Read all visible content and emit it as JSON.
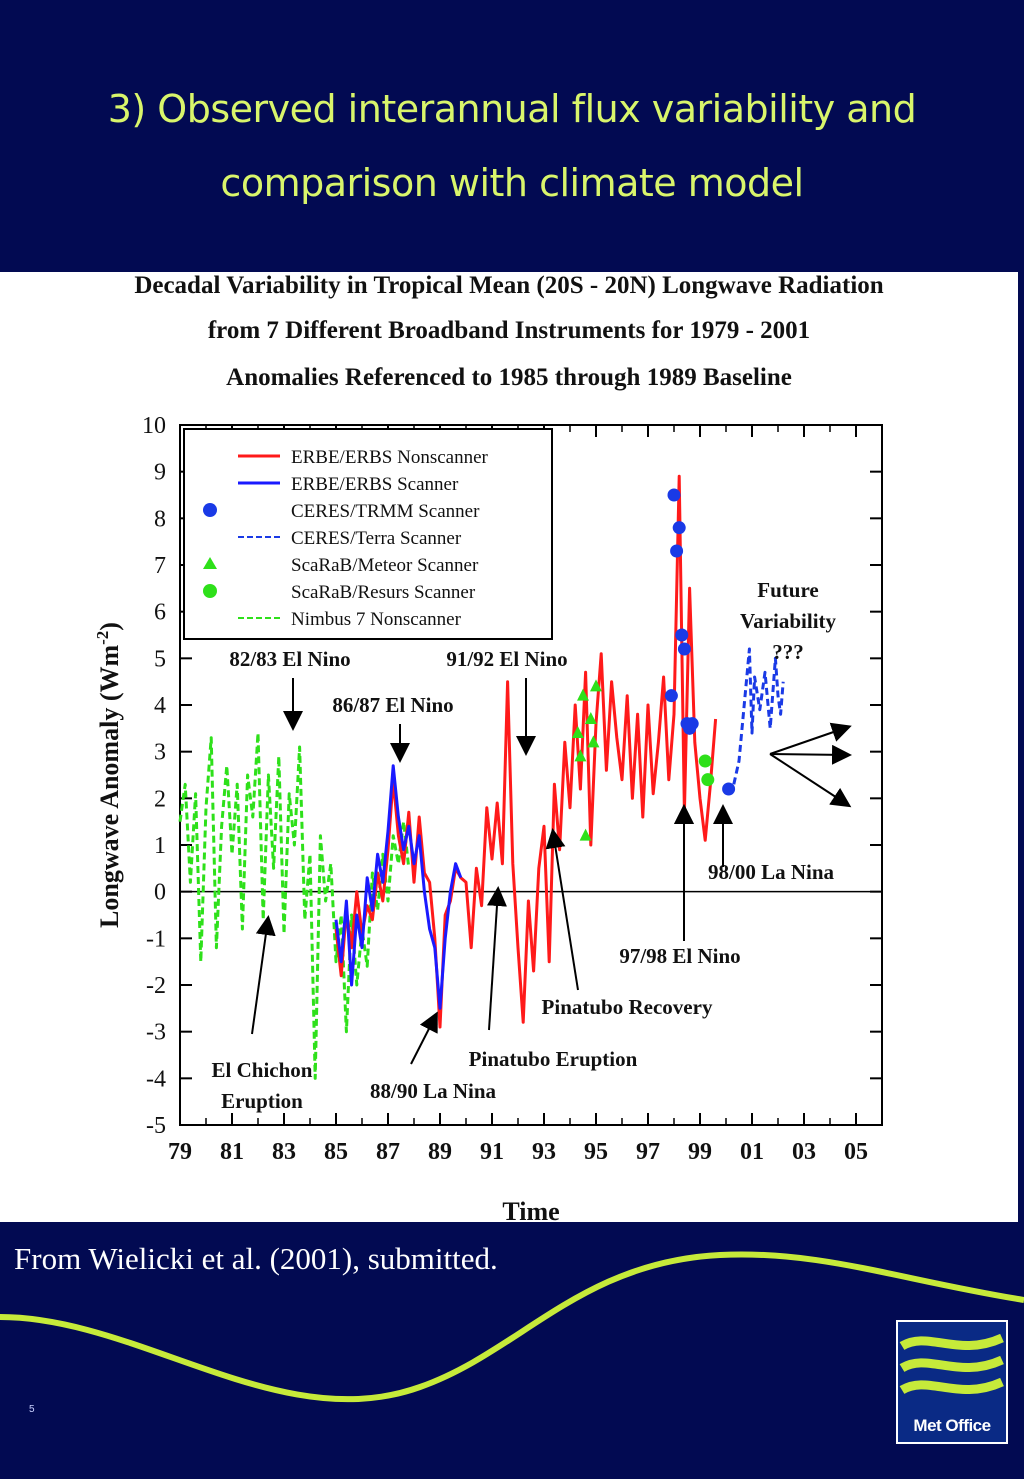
{
  "slide": {
    "title_line1": "3) Observed interannual flux variability and",
    "title_line2": "comparison with climate model",
    "caption": "From Wielicki et al. (2001), submitted.",
    "slide_number": "5",
    "logo_text": "Met Office",
    "colors": {
      "background": "#020a52",
      "title": "#d9f56b",
      "wave": "#c6ea3a"
    }
  },
  "chart_data": {
    "type": "line",
    "title_lines": [
      "Decadal Variability in Tropical Mean (20S - 20N) Longwave Radiation",
      "from 7 Different Broadband Instruments for 1979 - 2001",
      "Anomalies Referenced to 1985 through 1989 Baseline"
    ],
    "xlabel": "Time",
    "ylabel": "Longwave Anomaly (Wm",
    "ylabel_sup": "-2",
    "ylabel_end": ")",
    "xlim": [
      1979,
      2006
    ],
    "ylim": [
      -5,
      10
    ],
    "x_ticks": [
      {
        "value": 1979,
        "label": "79"
      },
      {
        "value": 1981,
        "label": "81"
      },
      {
        "value": 1983,
        "label": "83"
      },
      {
        "value": 1985,
        "label": "85"
      },
      {
        "value": 1987,
        "label": "87"
      },
      {
        "value": 1989,
        "label": "89"
      },
      {
        "value": 1991,
        "label": "91"
      },
      {
        "value": 1993,
        "label": "93"
      },
      {
        "value": 1995,
        "label": "95"
      },
      {
        "value": 1997,
        "label": "97"
      },
      {
        "value": 1999,
        "label": "99"
      },
      {
        "value": 2001,
        "label": "01"
      },
      {
        "value": 2003,
        "label": "03"
      },
      {
        "value": 2005,
        "label": "05"
      }
    ],
    "y_ticks": [
      -5,
      -4,
      -3,
      -2,
      -1,
      0,
      1,
      2,
      3,
      4,
      5,
      6,
      7,
      8,
      9,
      10
    ],
    "zero_line": true,
    "legend_position": "top-left",
    "legend": [
      {
        "label": "ERBE/ERBS Nonscanner",
        "color": "#ff1a1a",
        "style": "solid"
      },
      {
        "label": "ERBE/ERBS Scanner",
        "color": "#1a1aff",
        "style": "solid"
      },
      {
        "label": "CERES/TRMM Scanner",
        "color": "#1a3ae6",
        "style": "circle"
      },
      {
        "label": "CERES/Terra Scanner",
        "color": "#1a3ae6",
        "style": "dashed"
      },
      {
        "label": "ScaRaB/Meteor Scanner",
        "color": "#2ee01a",
        "style": "triangle"
      },
      {
        "label": "ScaRaB/Resurs Scanner",
        "color": "#2ee01a",
        "style": "circle"
      },
      {
        "label": "Nimbus 7 Nonscanner",
        "color": "#2ee01a",
        "style": "dashed"
      }
    ],
    "series": [
      {
        "name": "Nimbus 7 Nonscanner",
        "color": "#2ee01a",
        "style": "dashed",
        "x": [
          1979.0,
          1979.2,
          1979.4,
          1979.6,
          1979.8,
          1980.0,
          1980.2,
          1980.4,
          1980.6,
          1980.8,
          1981.0,
          1981.2,
          1981.4,
          1981.6,
          1981.8,
          1982.0,
          1982.2,
          1982.4,
          1982.6,
          1982.8,
          1983.0,
          1983.2,
          1983.4,
          1983.6,
          1983.8,
          1984.0,
          1984.2,
          1984.4,
          1984.6,
          1984.8,
          1985.0,
          1985.2,
          1985.4,
          1985.6,
          1985.8,
          1986.0,
          1986.2,
          1986.4,
          1986.6,
          1986.8,
          1987.0,
          1987.2,
          1987.4,
          1987.6,
          1987.8
        ],
        "y": [
          1.5,
          2.3,
          0.2,
          2.1,
          -1.5,
          1.8,
          3.3,
          -1.2,
          1.4,
          2.7,
          0.8,
          2.3,
          -0.8,
          2.5,
          1.6,
          3.4,
          -0.6,
          2.5,
          0.5,
          2.9,
          -0.9,
          2.1,
          1.0,
          3.1,
          -0.6,
          0.8,
          -4.0,
          1.2,
          -0.2,
          0.6,
          -1.5,
          -0.5,
          -3.0,
          -0.5,
          -2.0,
          -0.8,
          -1.6,
          0.4,
          -0.4,
          0.8,
          -0.2,
          1.2,
          0.6,
          1.5,
          0.5
        ]
      },
      {
        "name": "ERBE/ERBS Nonscanner",
        "color": "#ff1a1a",
        "style": "solid",
        "x": [
          1985.0,
          1985.2,
          1985.4,
          1985.6,
          1985.8,
          1986.0,
          1986.2,
          1986.4,
          1986.6,
          1986.8,
          1987.0,
          1987.2,
          1987.4,
          1987.6,
          1987.8,
          1988.0,
          1988.2,
          1988.4,
          1988.6,
          1988.8,
          1989.0,
          1989.2,
          1989.4,
          1989.6,
          1989.8,
          1990.0,
          1990.2,
          1990.4,
          1990.6,
          1990.8,
          1991.0,
          1991.2,
          1991.4,
          1991.6,
          1991.8,
          1992.0,
          1992.2,
          1992.4,
          1992.6,
          1992.8,
          1993.0,
          1993.2,
          1993.4,
          1993.6,
          1993.8,
          1994.0,
          1994.2,
          1994.4,
          1994.6,
          1994.8,
          1995.0,
          1995.2,
          1995.4,
          1995.6,
          1995.8,
          1996.0,
          1996.2,
          1996.4,
          1996.6,
          1996.8,
          1997.0,
          1997.2,
          1997.4,
          1997.6,
          1997.8,
          1998.0,
          1998.2,
          1998.4,
          1998.6,
          1998.8,
          1999.0,
          1999.2,
          1999.4,
          1999.6
        ],
        "y": [
          -0.8,
          -1.8,
          -0.4,
          -1.2,
          0.0,
          -0.9,
          -0.3,
          -0.6,
          0.4,
          -0.2,
          0.9,
          2.4,
          1.2,
          0.6,
          1.7,
          0.2,
          1.6,
          0.4,
          0.2,
          -1.0,
          -2.9,
          -0.5,
          -0.2,
          0.5,
          0.3,
          0.2,
          -1.2,
          0.5,
          -0.3,
          1.8,
          0.7,
          1.9,
          0.6,
          4.5,
          0.6,
          -1.2,
          -2.8,
          -0.2,
          -1.7,
          0.5,
          1.4,
          -1.5,
          2.3,
          0.9,
          3.2,
          1.8,
          4.0,
          2.2,
          4.7,
          1.0,
          3.6,
          5.1,
          2.6,
          4.5,
          3.3,
          2.4,
          4.2,
          2.0,
          3.8,
          1.6,
          4.0,
          2.1,
          3.2,
          4.6,
          2.4,
          3.8,
          8.9,
          1.7,
          6.5,
          3.2,
          2.0,
          1.1,
          2.3,
          3.7
        ]
      },
      {
        "name": "ERBE/ERBS Scanner",
        "color": "#1a1aff",
        "style": "solid",
        "x": [
          1985.0,
          1985.2,
          1985.4,
          1985.6,
          1985.8,
          1986.0,
          1986.2,
          1986.4,
          1986.6,
          1986.8,
          1987.0,
          1987.2,
          1987.4,
          1987.6,
          1987.8,
          1988.0,
          1988.2,
          1988.4,
          1988.6,
          1988.8,
          1989.0,
          1989.2,
          1989.4,
          1989.6,
          1989.8
        ],
        "y": [
          -0.6,
          -1.5,
          -0.2,
          -2.0,
          -0.5,
          -1.2,
          0.3,
          -0.4,
          0.8,
          0.2,
          1.3,
          2.7,
          1.6,
          0.9,
          1.4,
          0.6,
          1.2,
          0.0,
          -0.8,
          -1.2,
          -2.5,
          -1.0,
          0.0,
          0.6,
          0.3
        ]
      },
      {
        "name": "CERES/Terra Scanner",
        "color": "#1a3ae6",
        "style": "dashed",
        "x": [
          2000.3,
          2000.5,
          2000.7,
          2000.9,
          2001.0,
          2001.1,
          2001.3,
          2001.5,
          2001.7,
          2001.9,
          2002.0,
          2002.1,
          2002.2
        ],
        "y": [
          2.3,
          2.8,
          4.0,
          5.2,
          3.4,
          4.6,
          3.9,
          4.7,
          3.5,
          5.0,
          4.2,
          3.8,
          4.5
        ]
      }
    ],
    "points": [
      {
        "series": "CERES/TRMM Scanner",
        "color": "#1a3ae6",
        "shape": "circle",
        "x": [
          1998.0,
          1998.1,
          1998.2,
          1998.3,
          1998.4,
          1998.5,
          1997.9,
          1998.6,
          1998.7,
          2000.1
        ],
        "y": [
          8.5,
          7.3,
          7.8,
          5.5,
          5.2,
          3.6,
          4.2,
          3.5,
          3.6,
          2.2
        ]
      },
      {
        "series": "ScaRaB/Meteor Scanner",
        "color": "#2ee01a",
        "shape": "triangle",
        "x": [
          1994.3,
          1994.5,
          1994.8,
          1995.0,
          1994.6,
          1994.4,
          1994.9
        ],
        "y": [
          3.4,
          4.2,
          3.7,
          4.4,
          1.2,
          2.9,
          3.2
        ]
      },
      {
        "series": "ScaRaB/Resurs Scanner",
        "color": "#2ee01a",
        "shape": "circle",
        "x": [
          1999.2,
          1999.3
        ],
        "y": [
          2.8,
          2.4
        ]
      }
    ],
    "annotations": [
      {
        "lines": [
          "82/83 El Nino"
        ]
      },
      {
        "lines": [
          "86/87 El Nino"
        ]
      },
      {
        "lines": [
          "91/92 El Nino"
        ]
      },
      {
        "lines": [
          "Future",
          "Variability",
          "???"
        ]
      },
      {
        "lines": [
          "98/00 La Nina"
        ]
      },
      {
        "lines": [
          "97/98 El Nino"
        ]
      },
      {
        "lines": [
          "Pinatubo Recovery"
        ]
      },
      {
        "lines": [
          "Pinatubo Eruption"
        ]
      },
      {
        "lines": [
          "El Chichon",
          "Eruption"
        ]
      },
      {
        "lines": [
          "88/90 La Nina"
        ]
      }
    ]
  }
}
